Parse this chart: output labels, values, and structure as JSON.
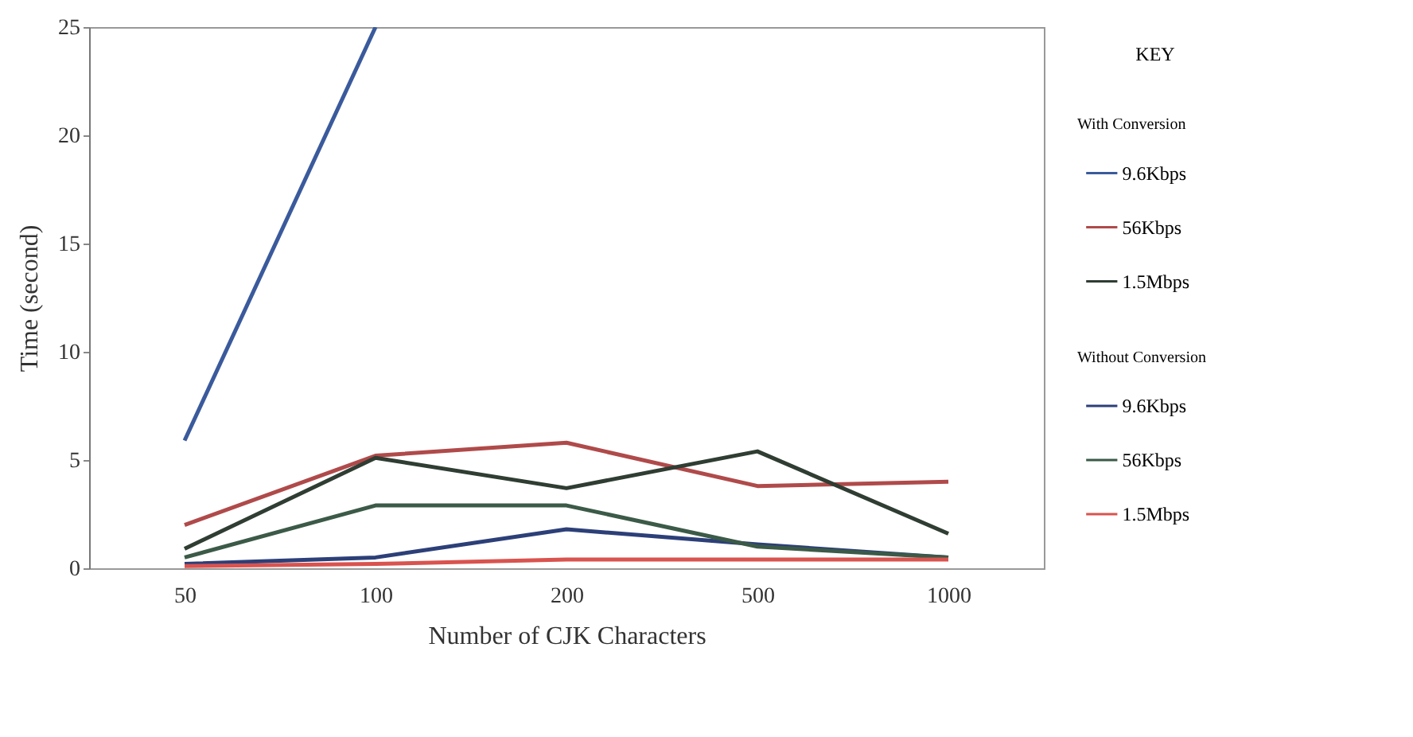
{
  "chart_data": {
    "type": "line",
    "xlabel": "Number of CJK Characters",
    "ylabel": "Time (second)",
    "categories": [
      "50",
      "100",
      "200",
      "500",
      "1000"
    ],
    "ylim": [
      0,
      25
    ],
    "yticks": [
      0,
      5,
      10,
      15,
      20,
      25
    ],
    "grid": false,
    "legend": "right",
    "legend_title": "KEY",
    "annotations": [
      "With Conversion",
      "Without Conversion"
    ],
    "series": [
      {
        "name": "9.6Kbps",
        "color": "#3a5a9c",
        "values": [
          5.9,
          25,
          null,
          null,
          null
        ]
      },
      {
        "name": "56Kbps",
        "color": "#b04a4a",
        "values": [
          2.0,
          5.2,
          5.8,
          3.8,
          4.0
        ]
      },
      {
        "name": "1.5Mbps",
        "color": "#2f3d33",
        "values": [
          0.9,
          5.1,
          3.7,
          5.4,
          1.6
        ]
      },
      {
        "name": "9.6Kbps",
        "color": "#2c3f78",
        "values": [
          0.2,
          0.5,
          1.8,
          1.1,
          0.5
        ]
      },
      {
        "name": "56Kbps",
        "color": "#3b5a47",
        "values": [
          0.5,
          2.9,
          2.9,
          1.0,
          0.5
        ]
      },
      {
        "name": "1.5Mbps",
        "color": "#d9534f",
        "values": [
          0.1,
          0.2,
          0.4,
          0.4,
          0.4
        ]
      }
    ]
  }
}
